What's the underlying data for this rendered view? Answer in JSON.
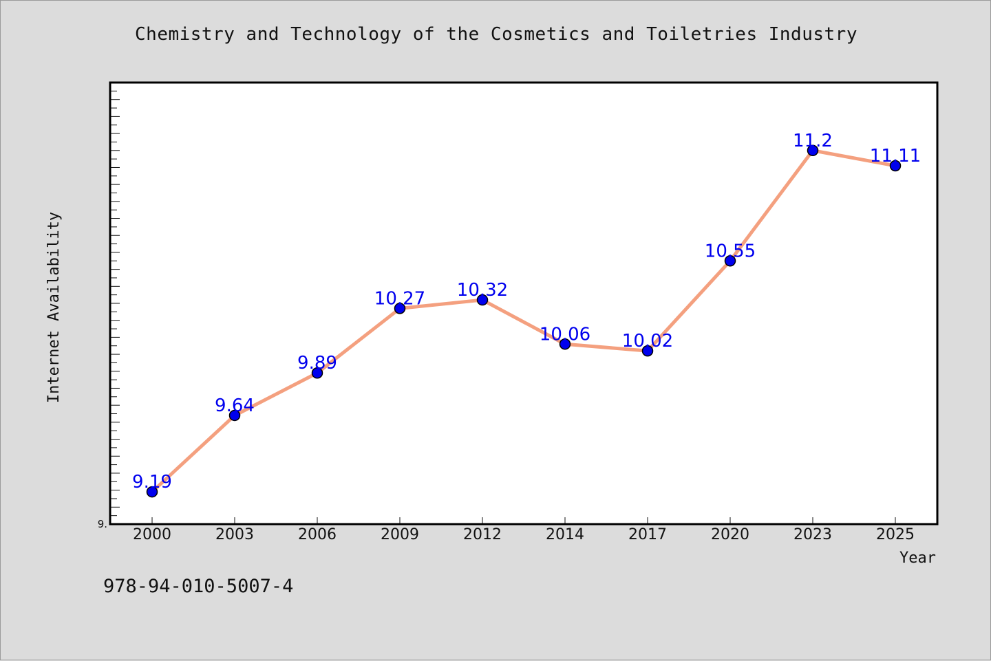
{
  "chart_data": {
    "type": "line",
    "title": "Chemistry and Technology of the Cosmetics and Toiletries Industry",
    "xlabel": "Year",
    "ylabel": "Internet Availability",
    "categories": [
      "2000",
      "2003",
      "2006",
      "2009",
      "2012",
      "2014",
      "2017",
      "2020",
      "2023",
      "2025"
    ],
    "series": [
      {
        "values": [
          9.19,
          9.64,
          9.89,
          10.27,
          10.32,
          10.06,
          10.02,
          10.55,
          11.2,
          11.11
        ],
        "labels": [
          "9.19",
          "9.64",
          "9.89",
          "10.27",
          "10.32",
          "10.06",
          "10.02",
          "10.55",
          "11.2",
          "11.11"
        ]
      }
    ],
    "ylim": [
      9.0,
      11.6
    ],
    "ymin_label": "9.",
    "grid": false,
    "line_color": "#f4a07f",
    "marker_color": "#0000ee",
    "label_color": "#0000ee"
  },
  "footnote": "978-94-010-5007-4"
}
